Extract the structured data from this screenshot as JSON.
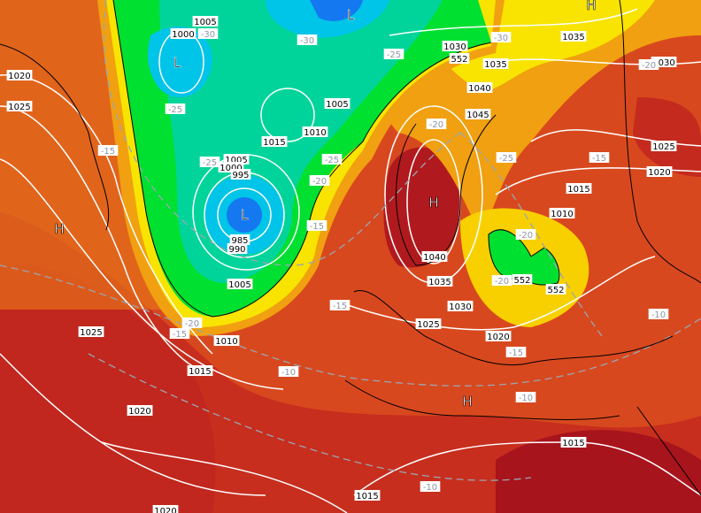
{
  "colors": {
    "dark_red": "#a8141c",
    "red": "#c42a1e",
    "orange_red": "#d8481e",
    "orange": "#e6701a",
    "amber": "#f0a010",
    "yellow": "#f8e400",
    "green": "#00e030",
    "teal": "#00d49a",
    "cyan": "#00c4e8",
    "blue": "#1478f0",
    "isobar": "#ffffff",
    "isotherm": "#9aa6b4",
    "coastline": "#000000"
  },
  "pressure_labels": [
    "1005",
    "1000",
    "1005",
    "1010",
    "1015",
    "1005",
    "1000",
    "995",
    "985",
    "990",
    "1020",
    "1025",
    "1030",
    "552",
    "1035",
    "1035",
    "1040",
    "1045",
    "1030",
    "1025",
    "1020",
    "1015",
    "1010",
    "1040",
    "1035",
    "1030",
    "1025",
    "1020",
    "1015",
    "1015",
    "1005",
    "1010",
    "1015",
    "1025",
    "1020",
    "1020",
    "552",
    "552"
  ],
  "temperature_labels": [
    "-30",
    "-30",
    "-25",
    "-25",
    "-15",
    "-25",
    "-30",
    "-20",
    "-25",
    "-15",
    "-20",
    "-25",
    "-20",
    "-15",
    "-20",
    "-20",
    "-15",
    "-15",
    "-20",
    "-10",
    "-15",
    "-10",
    "-10",
    "-10"
  ],
  "pressure_centers": [
    "L",
    "L",
    "L",
    "H",
    "H",
    "H",
    "H"
  ]
}
